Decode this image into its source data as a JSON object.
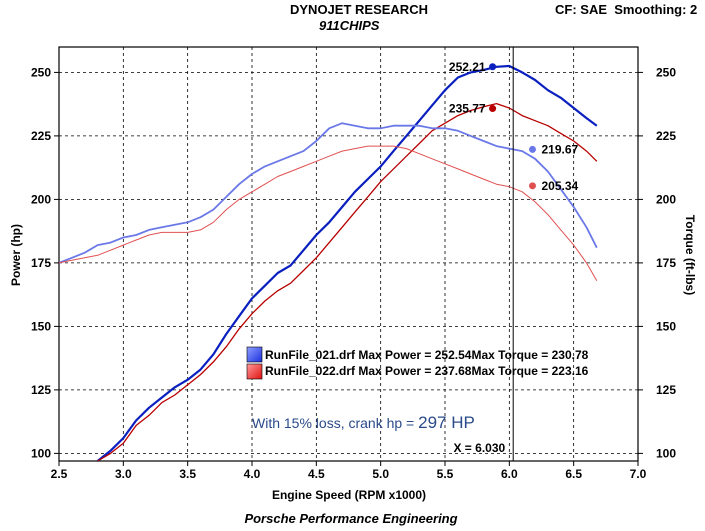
{
  "header": {
    "title": "DYNOJET RESEARCH",
    "subtitle": "911CHIPS",
    "settings": "CF: SAE  Smoothing: 2"
  },
  "footer": {
    "text": "Porsche Performance Engineering"
  },
  "colors": {
    "blue": "#0a1fbf",
    "blue_light": "#6a78e8",
    "red": "#b80000",
    "red_light": "#e05050",
    "legend_blue": "#2a44ff",
    "legend_red": "#ff3a3a"
  },
  "chart_data": {
    "type": "line",
    "xlabel": "Engine Speed (RPM x1000)",
    "ylabel": "Power (hp)",
    "ylabel_right": "Torque (ft-lbs)",
    "xlim": [
      2.5,
      7.0
    ],
    "ylim": [
      97,
      260
    ],
    "x_ticks": [
      "2.5",
      "3.0",
      "3.5",
      "4.0",
      "4.5",
      "5.0",
      "5.5",
      "6.0",
      "6.5",
      "7.0"
    ],
    "y_ticks": [
      "100",
      "125",
      "150",
      "175",
      "200",
      "225",
      "250"
    ],
    "y_ticks_right": [
      "100",
      "125",
      "150",
      "175",
      "200",
      "225",
      "250"
    ],
    "grid": true,
    "cursor": {
      "x": 6.03,
      "label": "X = 6.030"
    },
    "marker_labels": [
      {
        "text": "252.21",
        "x": 5.87,
        "y": 252.21,
        "color": "blue"
      },
      {
        "text": "235.77",
        "x": 5.87,
        "y": 235.77,
        "color": "red"
      },
      {
        "text": "219.67",
        "x": 6.18,
        "y": 219.67,
        "color": "blue_light"
      },
      {
        "text": "205.34",
        "x": 6.18,
        "y": 205.34,
        "color": "red_light"
      }
    ],
    "legend": [
      {
        "file": "RunFile_021.drf",
        "max_power_label": "Max Power =",
        "max_power": "252.54",
        "max_torque_label": "Max Torque =",
        "max_torque": "230.78",
        "color": "legend_blue"
      },
      {
        "file": "RunFile_022.drf",
        "max_power_label": "Max Power =",
        "max_power": "237.68",
        "max_torque_label": "Max Torque =",
        "max_torque": "223.16",
        "color": "legend_red"
      }
    ],
    "annotation": {
      "prefix": "With 15% loss, crank hp = ",
      "value": "297 HP"
    },
    "series": [
      {
        "run": "RunFile_021.drf",
        "kind": "power",
        "color": "blue",
        "width": 2.2,
        "x": [
          2.8,
          2.9,
          3.0,
          3.1,
          3.2,
          3.3,
          3.4,
          3.5,
          3.6,
          3.7,
          3.8,
          3.9,
          4.0,
          4.1,
          4.2,
          4.3,
          4.4,
          4.5,
          4.6,
          4.7,
          4.8,
          4.9,
          5.0,
          5.1,
          5.2,
          5.3,
          5.4,
          5.5,
          5.6,
          5.7,
          5.8,
          5.9,
          6.0,
          6.1,
          6.2,
          6.3,
          6.4,
          6.5,
          6.6,
          6.68
        ],
        "y": [
          97,
          101,
          106,
          113,
          118,
          122,
          126,
          129,
          133,
          139,
          147,
          154,
          161,
          166,
          171,
          174,
          180,
          186,
          191,
          197,
          203,
          208,
          213,
          219,
          225,
          231,
          237,
          243,
          248,
          250,
          251,
          252.2,
          252.5,
          250,
          247,
          243,
          240,
          236,
          232,
          229
        ]
      },
      {
        "run": "RunFile_022.drf",
        "kind": "power",
        "color": "red",
        "width": 1.3,
        "x": [
          2.8,
          2.9,
          3.0,
          3.1,
          3.2,
          3.3,
          3.4,
          3.5,
          3.6,
          3.7,
          3.8,
          3.9,
          4.0,
          4.1,
          4.2,
          4.3,
          4.4,
          4.5,
          4.6,
          4.7,
          4.8,
          4.9,
          5.0,
          5.1,
          5.2,
          5.3,
          5.4,
          5.5,
          5.6,
          5.7,
          5.8,
          5.9,
          6.0,
          6.1,
          6.2,
          6.3,
          6.4,
          6.5,
          6.6,
          6.68
        ],
        "y": [
          97,
          100,
          104,
          111,
          115,
          120,
          123,
          127,
          131,
          136,
          142,
          149,
          155,
          160,
          164,
          167,
          172,
          177,
          183,
          189,
          195,
          201,
          207,
          212,
          217,
          222,
          227,
          230,
          233,
          235,
          236.5,
          237.7,
          236,
          233,
          231,
          229,
          226,
          223,
          219,
          215
        ]
      },
      {
        "run": "RunFile_021.drf",
        "kind": "torque",
        "color": "blue_light",
        "width": 1.8,
        "x": [
          2.5,
          2.6,
          2.7,
          2.8,
          2.9,
          3.0,
          3.1,
          3.2,
          3.3,
          3.4,
          3.5,
          3.6,
          3.7,
          3.8,
          3.9,
          4.0,
          4.1,
          4.2,
          4.3,
          4.4,
          4.5,
          4.6,
          4.7,
          4.8,
          4.9,
          5.0,
          5.1,
          5.2,
          5.3,
          5.4,
          5.5,
          5.6,
          5.7,
          5.8,
          5.9,
          6.0,
          6.1,
          6.2,
          6.3,
          6.4,
          6.5,
          6.6,
          6.68
        ],
        "y": [
          175,
          177,
          179,
          182,
          183,
          185,
          186,
          188,
          189,
          190,
          191,
          193,
          196,
          201,
          206,
          210,
          213,
          215,
          217,
          219,
          223,
          228,
          230,
          229,
          228,
          228,
          229,
          229,
          229,
          228,
          228,
          227,
          225,
          223,
          221,
          220,
          219,
          216,
          211,
          204,
          197,
          189,
          181
        ]
      },
      {
        "run": "RunFile_022.drf",
        "kind": "torque",
        "color": "red_light",
        "width": 1.0,
        "x": [
          2.5,
          2.6,
          2.7,
          2.8,
          2.9,
          3.0,
          3.1,
          3.2,
          3.3,
          3.4,
          3.5,
          3.6,
          3.7,
          3.8,
          3.9,
          4.0,
          4.1,
          4.2,
          4.3,
          4.4,
          4.5,
          4.6,
          4.7,
          4.8,
          4.9,
          5.0,
          5.1,
          5.2,
          5.3,
          5.4,
          5.5,
          5.6,
          5.7,
          5.8,
          5.9,
          6.0,
          6.1,
          6.2,
          6.3,
          6.4,
          6.5,
          6.6,
          6.68
        ],
        "y": [
          175,
          176,
          177,
          178,
          180,
          182,
          184,
          186,
          187,
          187,
          187,
          188,
          191,
          196,
          200,
          203,
          206,
          209,
          211,
          213,
          215,
          217,
          219,
          220,
          221,
          221,
          221,
          220,
          218,
          216,
          214,
          212,
          210,
          208,
          206,
          205,
          203,
          199,
          194,
          188,
          182,
          175,
          168
        ]
      }
    ]
  }
}
